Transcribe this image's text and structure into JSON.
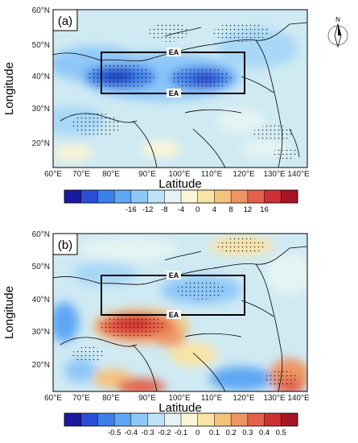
{
  "north_arrow": {
    "label": "N",
    "icon": "compass-north-arrow-icon"
  },
  "panels": [
    {
      "id": "a",
      "label": "(a)",
      "ylabel": "Longitude",
      "xlabel": "Latitude",
      "x_ticks": [
        "60°E",
        "70°E",
        "80°E",
        "90°E",
        "100°E",
        "110°E",
        "120°E",
        "130°E",
        "140°E"
      ],
      "y_ticks": [
        "60°N",
        "50°N",
        "40°N",
        "30°N",
        "20°N"
      ],
      "box_labels": [
        "EA",
        "EA"
      ],
      "colorbar_labels": [
        "-16",
        "-12",
        "-8",
        "-4",
        "0",
        "4",
        "8",
        "12",
        "16"
      ],
      "colorbar_colors": [
        "#1a1aa0",
        "#2a4fd6",
        "#3d7fe8",
        "#5fa7f3",
        "#8ec8f8",
        "#bfe3f6",
        "#e5f4f3",
        "#fbf6d6",
        "#f9e3a6",
        "#f5c27e",
        "#ef9564",
        "#e3604a",
        "#cf2f32",
        "#a61628"
      ]
    },
    {
      "id": "b",
      "label": "(b)",
      "ylabel": "Longitude",
      "xlabel": "Latitude",
      "x_ticks": [
        "60°E",
        "70°E",
        "80°E",
        "90°E",
        "100°E",
        "110°E",
        "120°E",
        "130°E",
        "140°E"
      ],
      "y_ticks": [
        "60°N",
        "50°N",
        "40°N",
        "30°N",
        "20°N"
      ],
      "box_labels": [
        "EA",
        "EA"
      ],
      "colorbar_labels": [
        "-0.5",
        "-0.4",
        "-0.3",
        "-0.2",
        "-0.1",
        "0",
        "0.1",
        "0.2",
        "0.3",
        "0.4",
        "0.5"
      ],
      "colorbar_colors": [
        "#1a1aa0",
        "#2a4fd6",
        "#3d7fe8",
        "#5fa7f3",
        "#8ec8f8",
        "#bfe3f6",
        "#e5f4f3",
        "#fbf6d6",
        "#f9e3a6",
        "#f5c27e",
        "#ef9564",
        "#e3604a",
        "#cf2f32",
        "#a61628"
      ]
    }
  ],
  "colors": {
    "background_field": "#cfeaf3",
    "frame": "#000000"
  }
}
